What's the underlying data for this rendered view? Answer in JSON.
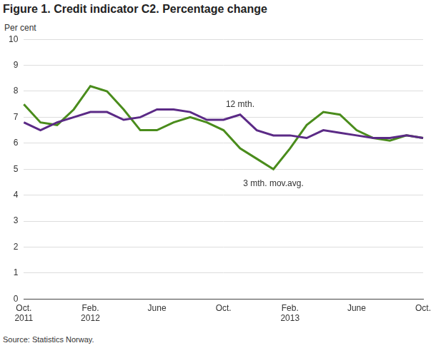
{
  "chart_data": {
    "type": "line",
    "title": "Figure 1. Credit indicator C2. Percentage change",
    "y_label": "Per cent",
    "source": "Source: Statistics Norway.",
    "categories": [
      "Oct.\n2011",
      null,
      null,
      null,
      "Feb.\n2012",
      null,
      null,
      null,
      "June",
      null,
      null,
      null,
      "Oct.",
      null,
      null,
      null,
      "Feb.\n2013",
      null,
      null,
      null,
      "June",
      null,
      null,
      null,
      "Oct."
    ],
    "series": [
      {
        "name": "12 mth.",
        "color": "#5b2a86",
        "values": [
          6.8,
          6.5,
          6.8,
          7.0,
          7.2,
          7.2,
          6.9,
          7.0,
          7.3,
          7.3,
          7.2,
          6.9,
          6.9,
          7.1,
          6.5,
          6.3,
          6.3,
          6.2,
          6.5,
          6.4,
          6.3,
          6.2,
          6.2,
          6.3,
          6.2
        ]
      },
      {
        "name": "3 mth. mov.avg.",
        "color": "#4a8c1c",
        "values": [
          7.5,
          6.8,
          6.7,
          7.3,
          8.2,
          8.0,
          7.3,
          6.5,
          6.5,
          6.8,
          7.0,
          6.8,
          6.5,
          5.8,
          5.4,
          5.0,
          5.8,
          6.7,
          7.2,
          7.1,
          6.5,
          6.2,
          6.1,
          6.3,
          6.2
        ]
      }
    ],
    "ylim": [
      0,
      10
    ],
    "yticks": [
      0,
      1,
      2,
      3,
      4,
      5,
      6,
      7,
      8,
      9,
      10
    ],
    "grid": true
  }
}
